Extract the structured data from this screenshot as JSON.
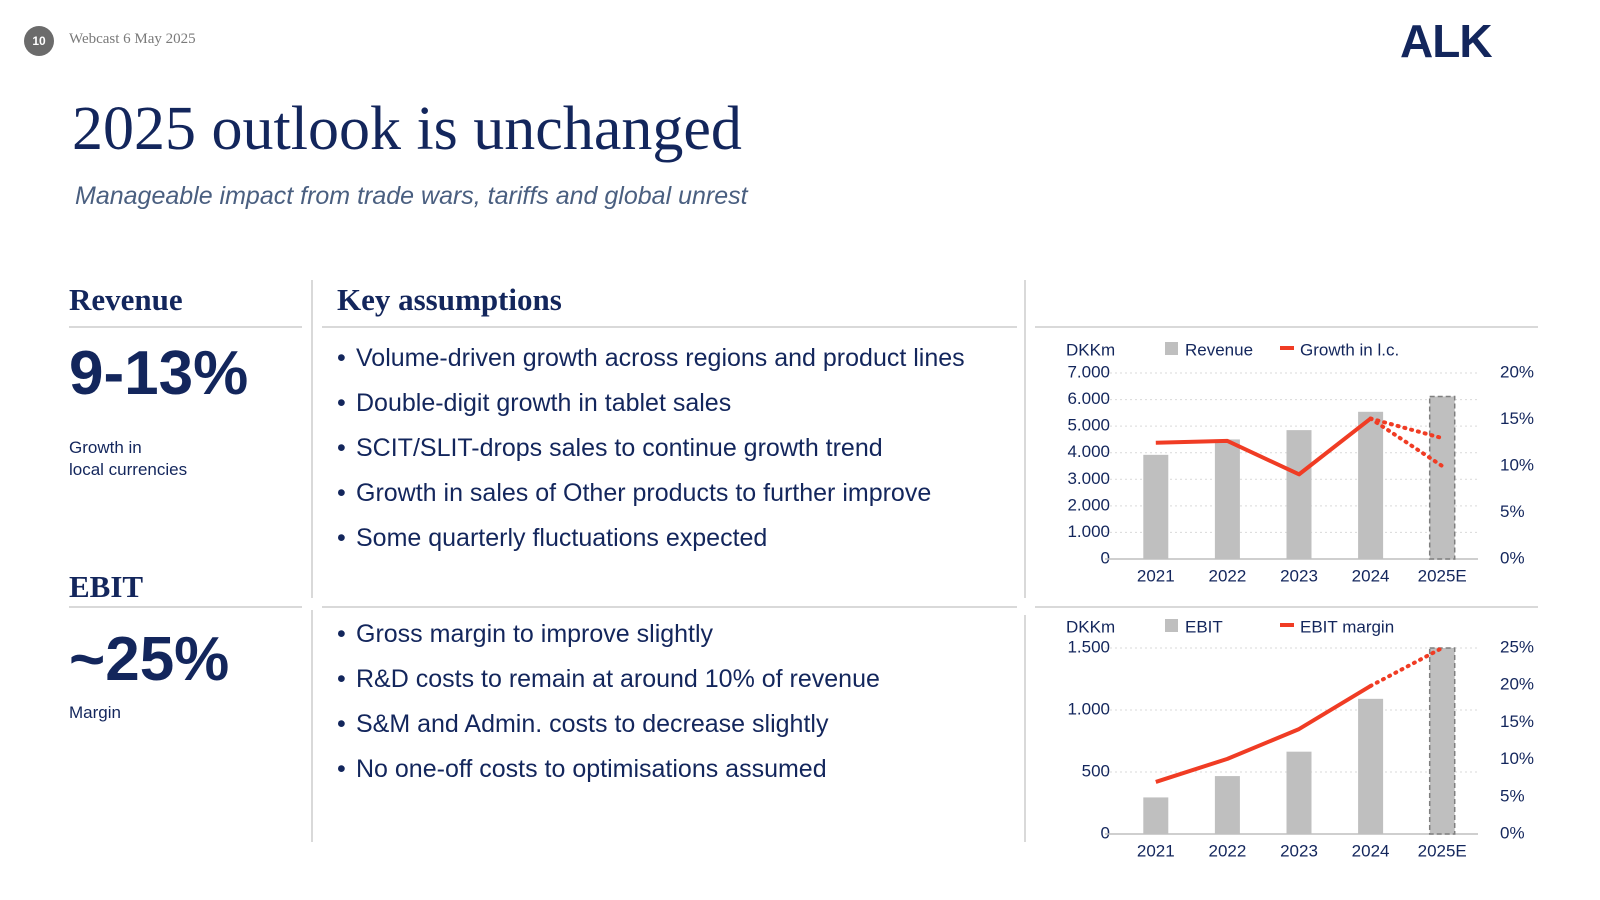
{
  "header": {
    "page_number": "10",
    "date": "Webcast 6 May 2025",
    "logo": "ALK"
  },
  "title": "2025 outlook is unchanged",
  "subtitle": "Manageable impact from trade wars, tariffs and global unrest",
  "key_assumptions_heading": "Key assumptions",
  "revenue": {
    "heading": "Revenue",
    "figure": "9-13%",
    "caption": "Growth in\nlocal currencies",
    "assumptions": [
      "Volume-driven growth across regions and product lines",
      "Double-digit growth in tablet sales",
      "SCIT/SLIT-drops sales to continue growth trend",
      "Growth in sales of Other products to further improve",
      "Some quarterly fluctuations expected"
    ]
  },
  "ebit": {
    "heading": "EBIT",
    "figure": "~25%",
    "caption": "Margin",
    "assumptions": [
      "Gross margin to improve slightly",
      "R&D costs to remain at around 10% of revenue",
      "S&M and Admin. costs to decrease slightly",
      "No one-off costs to optimisations assumed"
    ]
  },
  "chart_data": [
    {
      "type": "bar-line",
      "y_label": "DKKm",
      "categories": [
        "2021",
        "2022",
        "2023",
        "2024",
        "2025E"
      ],
      "series": [
        {
          "name": "Revenue",
          "color": "#bfbfbf",
          "values": [
            3920,
            4500,
            4850,
            5540,
            6115
          ],
          "dashed_last": true
        },
        {
          "name": "Growth in l.c.",
          "color": "#f03c24",
          "axis": "y2",
          "values": [
            12.5,
            12.7,
            9.1,
            15.1,
            null
          ],
          "forecast": [
            13,
            10
          ]
        }
      ],
      "ylim": [
        0,
        7000
      ],
      "yticks": [
        0,
        {
          "value": 1000,
          "label": "1.000"
        },
        {
          "value": 2000,
          "label": "2.000"
        },
        {
          "value": 3000,
          "label": "3.000"
        },
        {
          "value": 4000,
          "label": "4.000"
        },
        {
          "value": 5000,
          "label": "5.000"
        },
        {
          "value": 6000,
          "label": "6.000"
        },
        {
          "value": 7000,
          "label": "7.000"
        }
      ],
      "y2lim": [
        0,
        20
      ],
      "y2ticks": [
        {
          "value": 0,
          "label": "0%"
        },
        {
          "value": 5,
          "label": "5%"
        },
        {
          "value": 10,
          "label": "10%"
        },
        {
          "value": 15,
          "label": "15%"
        },
        {
          "value": 20,
          "label": "20%"
        }
      ],
      "grid": true
    },
    {
      "type": "bar-line",
      "y_label": "DKKm",
      "categories": [
        "2021",
        "2022",
        "2023",
        "2024",
        "2025E"
      ],
      "series": [
        {
          "name": "EBIT",
          "color": "#bfbfbf",
          "values": [
            295,
            467,
            664,
            1090,
            1500
          ],
          "dashed_last": true
        },
        {
          "name": "EBIT margin",
          "color": "#f03c24",
          "axis": "y2",
          "values": [
            7.0,
            10.1,
            14.1,
            19.9,
            null
          ],
          "forecast": [
            25
          ]
        }
      ],
      "ylim": [
        0,
        1500
      ],
      "yticks": [
        0,
        500,
        {
          "value": 1000,
          "label": "1.000"
        },
        {
          "value": 1500,
          "label": "1.500"
        }
      ],
      "y2lim": [
        0,
        25
      ],
      "y2ticks": [
        {
          "value": 0,
          "label": "0%"
        },
        {
          "value": 5,
          "label": "5%"
        },
        {
          "value": 10,
          "label": "10%"
        },
        {
          "value": 15,
          "label": "15%"
        },
        {
          "value": 20,
          "label": "20%"
        },
        {
          "value": 25,
          "label": "25%"
        }
      ],
      "grid": true
    }
  ]
}
